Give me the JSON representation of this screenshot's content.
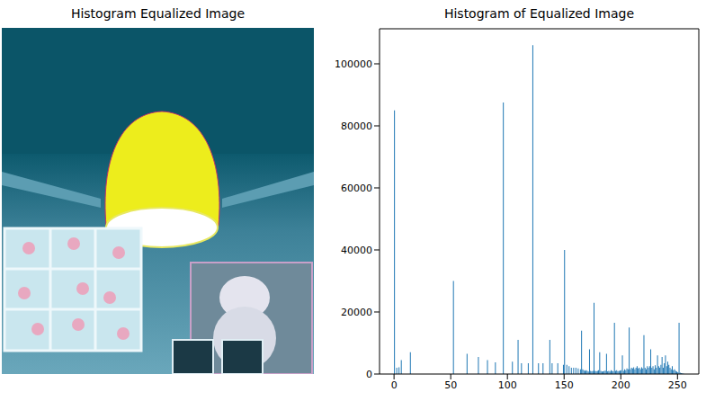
{
  "chart_data": [
    {
      "type": "image",
      "title": "Histogram Equalized Image"
    },
    {
      "type": "histogram",
      "title": "Histogram of Equalized Image",
      "color": "#1f77b4",
      "grid": false,
      "xlim": [
        -12.8,
        268.8
      ],
      "xticks": [
        0,
        50,
        100,
        150,
        200,
        250
      ],
      "ylim": [
        0,
        111300
      ],
      "yticks": [
        0,
        20000,
        40000,
        60000,
        80000,
        100000
      ],
      "bins": [
        0,
        1,
        2,
        3,
        4,
        5,
        6,
        7,
        8,
        9,
        10,
        11,
        12,
        13,
        14,
        15,
        16,
        17,
        18,
        19,
        20,
        21,
        22,
        23,
        24,
        25,
        26,
        27,
        28,
        29,
        30,
        31,
        32,
        33,
        34,
        35,
        36,
        37,
        38,
        39,
        40,
        41,
        42,
        43,
        44,
        45,
        46,
        47,
        48,
        49,
        50,
        51,
        52,
        53,
        54,
        55,
        56,
        57,
        58,
        59,
        60,
        61,
        62,
        63,
        64,
        65,
        66,
        67,
        68,
        69,
        70,
        71,
        72,
        73,
        74,
        75,
        76,
        77,
        78,
        79,
        80,
        81,
        82,
        83,
        84,
        85,
        86,
        87,
        88,
        89,
        90,
        91,
        92,
        93,
        94,
        95,
        96,
        97,
        98,
        99,
        100,
        101,
        102,
        103,
        104,
        105,
        106,
        107,
        108,
        109,
        110,
        111,
        112,
        113,
        114,
        115,
        116,
        117,
        118,
        119,
        120,
        121,
        122,
        123,
        124,
        125,
        126,
        127,
        128,
        129,
        130,
        131,
        132,
        133,
        134,
        135,
        136,
        137,
        138,
        139,
        140,
        141,
        142,
        143,
        144,
        145,
        146,
        147,
        148,
        149,
        150,
        151,
        152,
        153,
        154,
        155,
        156,
        157,
        158,
        159,
        160,
        161,
        162,
        163,
        164,
        165,
        166,
        167,
        168,
        169,
        170,
        171,
        172,
        173,
        174,
        175,
        176,
        177,
        178,
        179,
        180,
        181,
        182,
        183,
        184,
        185,
        186,
        187,
        188,
        189,
        190,
        191,
        192,
        193,
        194,
        195,
        196,
        197,
        198,
        199,
        200,
        201,
        202,
        203,
        204,
        205,
        206,
        207,
        208,
        209,
        210,
        211,
        212,
        213,
        214,
        215,
        216,
        217,
        218,
        219,
        220,
        221,
        222,
        223,
        224,
        225,
        226,
        227,
        228,
        229,
        230,
        231,
        232,
        233,
        234,
        235,
        236,
        237,
        238,
        239,
        240,
        241,
        242,
        243,
        244,
        245,
        246,
        247,
        248,
        249,
        250,
        251,
        252,
        253,
        254,
        255,
        256
      ],
      "values": [
        85000,
        0,
        2000,
        0,
        2200,
        0,
        4500,
        0,
        0,
        0,
        0,
        0,
        0,
        0,
        7000,
        0,
        0,
        0,
        0,
        0,
        0,
        0,
        0,
        0,
        0,
        0,
        0,
        0,
        0,
        0,
        0,
        0,
        0,
        0,
        0,
        0,
        0,
        0,
        0,
        0,
        0,
        0,
        0,
        0,
        0,
        0,
        0,
        0,
        0,
        0,
        0,
        0,
        30000,
        0,
        0,
        0,
        0,
        0,
        0,
        0,
        0,
        0,
        0,
        0,
        6500,
        0,
        0,
        0,
        0,
        0,
        0,
        0,
        0,
        0,
        5500,
        0,
        0,
        0,
        0,
        0,
        0,
        0,
        4500,
        0,
        0,
        0,
        0,
        0,
        0,
        3800,
        0,
        0,
        0,
        0,
        0,
        0,
        87500,
        0,
        0,
        0,
        0,
        0,
        0,
        0,
        4000,
        0,
        0,
        0,
        0,
        11000,
        0,
        0,
        3500,
        0,
        0,
        0,
        0,
        0,
        3500,
        0,
        0,
        0,
        106000,
        0,
        0,
        0,
        0,
        3500,
        0,
        0,
        0,
        3500,
        0,
        0,
        0,
        0,
        0,
        11000,
        0,
        3500,
        0,
        0,
        0,
        0,
        3500,
        0,
        0,
        0,
        0,
        3000,
        40000,
        0,
        3000,
        0,
        2500,
        0,
        2000,
        0,
        2000,
        0,
        2000,
        0,
        1800,
        0,
        1500,
        14000,
        1500,
        1200,
        1000,
        1200,
        1000,
        800,
        8000,
        1000,
        900,
        1000,
        23000,
        1000,
        900,
        1000,
        1200,
        7000,
        1000,
        800,
        900,
        1000,
        1100,
        6500,
        900,
        1000,
        800,
        1200,
        1000,
        900,
        16500,
        1000,
        1200,
        900,
        1000,
        1100,
        1200,
        6000,
        1000,
        1500,
        1200,
        1800,
        1500,
        15000,
        1500,
        2000,
        1800,
        2200,
        1500,
        2000,
        2500,
        1800,
        2000,
        1500,
        2200,
        1800,
        12500,
        2000,
        1500,
        2500,
        2000,
        2500,
        8000,
        2000,
        2500,
        1500,
        2800,
        2000,
        6000,
        2500,
        2000,
        3000,
        5500,
        2000,
        3500,
        6000,
        2500,
        4000,
        3000,
        2000,
        1500,
        2500,
        1200,
        1500,
        1000,
        800,
        600,
        16500,
        400,
        300,
        200,
        100
      ]
    }
  ]
}
